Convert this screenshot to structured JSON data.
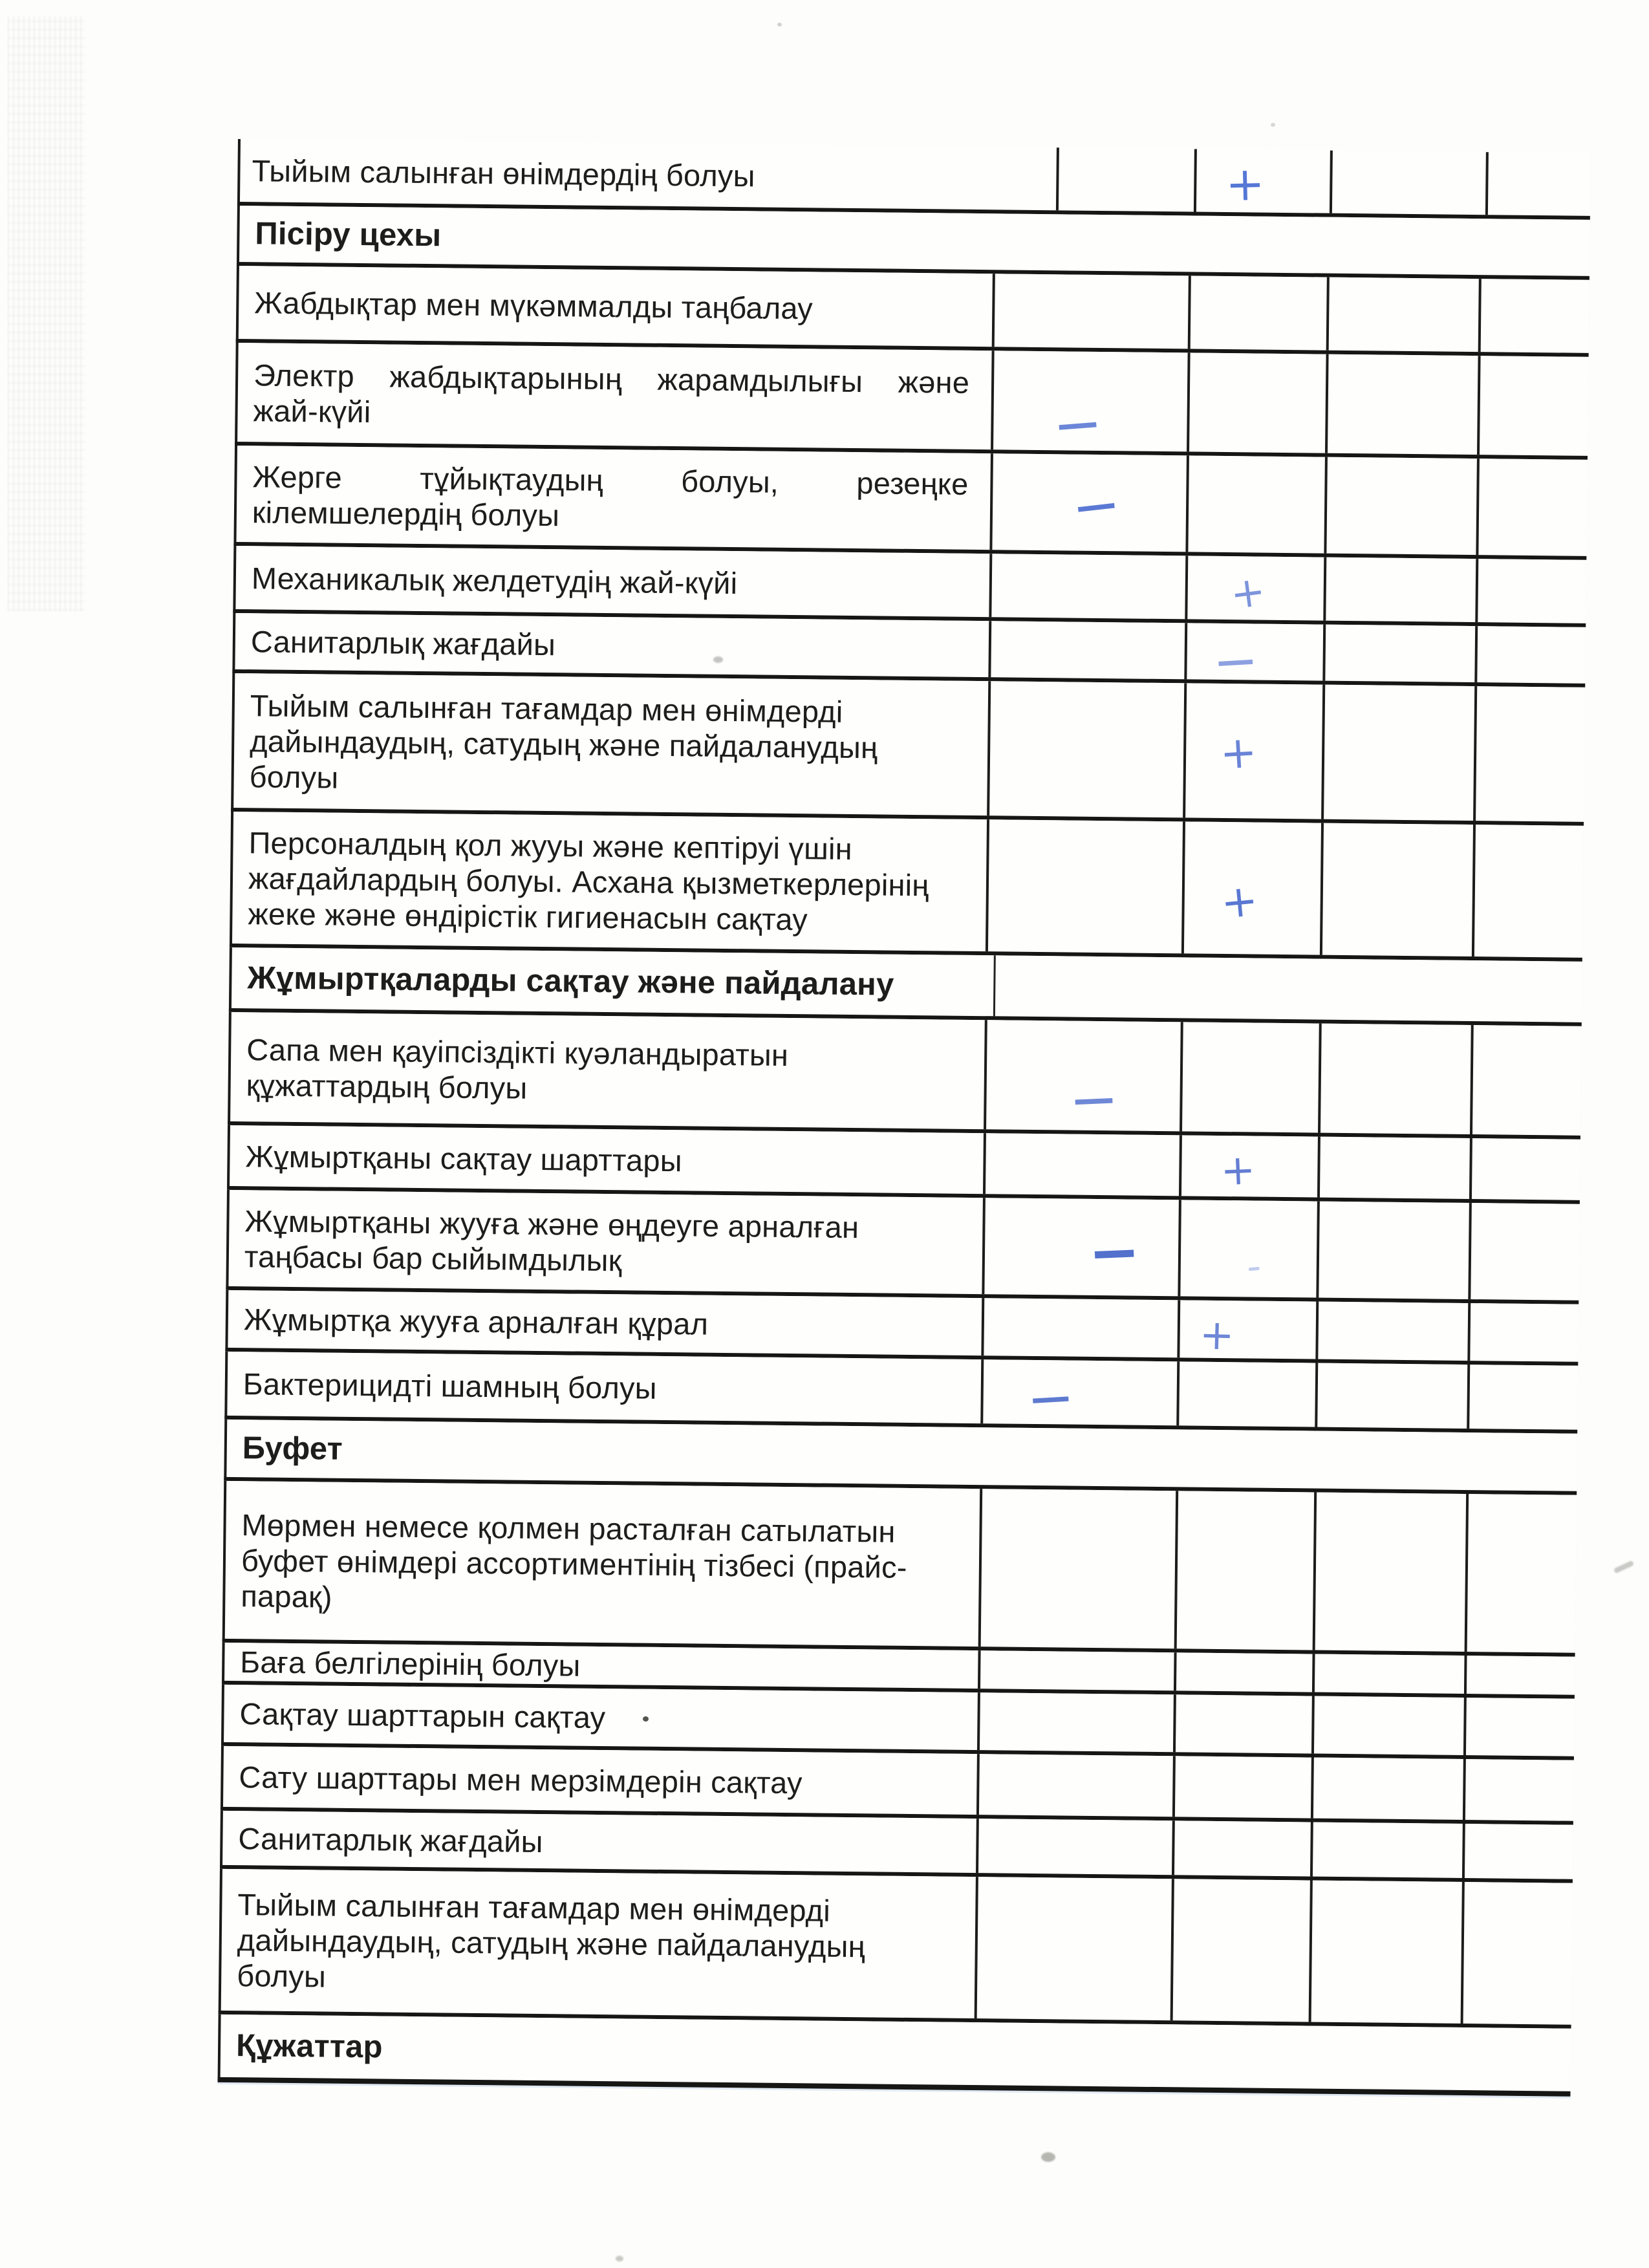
{
  "page": {
    "kind": "scanned inspection checklist (continuation page)",
    "language": "Kazakh"
  },
  "colors": {
    "ink": "#1d1d1b",
    "table_line": "#1a1a18",
    "pen_blue": "#5273ce",
    "paper": "#fdfdfb"
  },
  "rows": [
    {
      "label": "Тыйым салынған өнімдердің болуы",
      "mark": "+",
      "mark_col": 2
    },
    {
      "header": true,
      "label": "Пісіру цехы",
      "mark": ""
    },
    {
      "label": "Жабдықтар мен мүкәммалды таңбалау",
      "mark": ""
    },
    {
      "label": "Электр жабдықтарының жарамдылығы және жай-күйі",
      "lines": [
        "Электр жабдықтарының жарамдылығы және",
        "жай-күйі"
      ],
      "mark": "−",
      "mark_col": 1
    },
    {
      "label": "Жерге тұйықтаудың болуы, резеңке кілемшелердің болуы",
      "lines": [
        "Жерге тұйықтаудың болуы, резеңке",
        "кілемшелердің болуы"
      ],
      "mark": "−",
      "mark_col": 1
    },
    {
      "label": "Механикалық желдетудің жай-күйі",
      "mark": "+",
      "mark_col": 2
    },
    {
      "label": "Санитарлық жағдайы",
      "mark": "−",
      "mark_col": 2
    },
    {
      "label": "Тыйым салынған тағамдар мен өнімдерді\nдайындаудың, сатудың және пайдаланудың\nболуы",
      "mark": "+",
      "mark_col": 2
    },
    {
      "label": "Персоналдың қол жууы және кептіруі үшін\nжағдайлардың болуы. Асхана қызметкерлерінің\nжеке және өндірістік гигиенасын сақтау",
      "mark": "+",
      "mark_col": 2
    },
    {
      "header": true,
      "label": "Жұмыртқаларды сақтау және пайдалану",
      "mark": ""
    },
    {
      "label": "Сапа мен қауіпсіздікті куәландыратын\nқұжаттардың болуы",
      "mark": "−",
      "mark_col": 1
    },
    {
      "label": "Жұмыртқаны сақтау шарттары",
      "mark": "+",
      "mark_col": 2
    },
    {
      "label": "Жұмыртқаны жууға және өңдеуге арналған\nтаңбасы бар сыйымдылық",
      "mark": "−",
      "mark_col": 1
    },
    {
      "label": "Жұмыртқа жууға арналған құрал",
      "mark": "+",
      "mark_col": 2
    },
    {
      "label": "Бактерицидті шамның болуы",
      "mark": "−",
      "mark_col": 1
    },
    {
      "header": true,
      "label": "Буфет",
      "mark": ""
    },
    {
      "label": "Мөрмен немесе қолмен расталған сатылатын\nбуфет өнімдері ассортиментінің тізбесі (прайс-\nпарақ)",
      "mark": ""
    },
    {
      "label": "Баға белгілерінің болуы",
      "mark": ""
    },
    {
      "label": "Сақтау шарттарын сақтау",
      "mark": ""
    },
    {
      "label": "Сату шарттары мен мерзімдерін сақтау",
      "mark": ""
    },
    {
      "label": "Санитарлық жағдайы",
      "mark": ""
    },
    {
      "label": "Тыйым салынған тағамдар мен өнімдерді\nдайындаудың, сатудың және пайдаланудың\nболуы",
      "mark": ""
    },
    {
      "header": true,
      "label": "Құжаттар",
      "mark": ""
    }
  ]
}
